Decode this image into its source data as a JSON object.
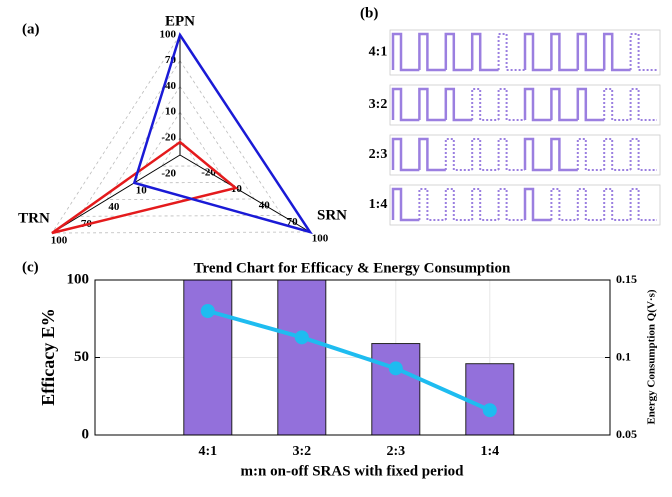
{
  "chart_data": [
    {
      "type": "radar",
      "panel_label": "(a)",
      "axes": [
        "EPN",
        "SRN",
        "TRN"
      ],
      "rlim": [
        -40,
        100
      ],
      "rticks": [
        -20,
        10,
        40,
        70,
        100
      ],
      "series": [
        {
          "color": "#e41a1c",
          "values": [
            -25,
            20,
            100
          ]
        },
        {
          "color": "#1a1ad6",
          "values": [
            100,
            100,
            10
          ]
        }
      ]
    },
    {
      "type": "waveform",
      "panel_label": "(b)",
      "categories": [
        "4:1",
        "3:2",
        "2:3",
        "1:4"
      ],
      "color": "#9b7fe0"
    },
    {
      "type": "bar-line",
      "panel_label": "(c)",
      "title": "Trend Chart for Efficacy & Energy Consumption",
      "categories": [
        "4:1",
        "3:2",
        "2:3",
        "1:4"
      ],
      "xlabel": "m:n on-off SRAS with fixed period",
      "ylabel": "Efficacy E%",
      "y2label": "Energy Consumption Q(V·s)",
      "ylim": [
        0,
        100
      ],
      "yticks": [
        0,
        50,
        100
      ],
      "y2lim": [
        0.05,
        0.15
      ],
      "y2ticks": [
        0.05,
        0.1,
        0.15
      ],
      "grid": true,
      "series": [
        {
          "type": "bar",
          "color": "#9370db",
          "values": [
            100,
            100,
            59,
            46
          ]
        },
        {
          "type": "line",
          "axis": "y2",
          "color": "#1ebcf0",
          "values": [
            0.13,
            0.113,
            0.093,
            0.066
          ]
        }
      ]
    }
  ]
}
